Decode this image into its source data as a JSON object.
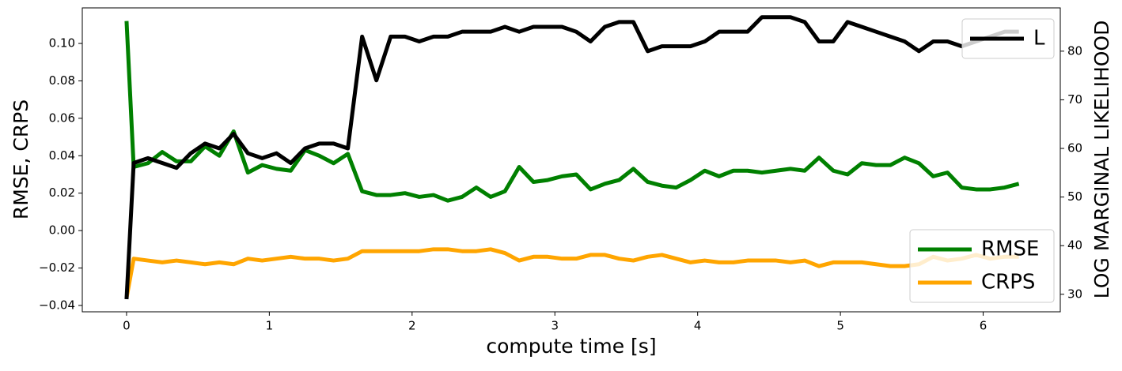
{
  "chart_data": {
    "type": "line",
    "xlabel": "compute time [s]",
    "ylabel": "RMSE, CRPS",
    "y2label": "LOG MARGINAL LIKELIHOOD",
    "x": [
      0,
      0.05,
      0.15,
      0.25,
      0.35,
      0.45,
      0.55,
      0.65,
      0.75,
      0.85,
      0.95,
      1.05,
      1.15,
      1.25,
      1.35,
      1.45,
      1.55,
      1.65,
      1.75,
      1.85,
      1.95,
      2.05,
      2.15,
      2.25,
      2.35,
      2.45,
      2.55,
      2.65,
      2.75,
      2.85,
      2.95,
      3.05,
      3.15,
      3.25,
      3.35,
      3.45,
      3.55,
      3.65,
      3.75,
      3.85,
      3.95,
      4.05,
      4.15,
      4.25,
      4.35,
      4.45,
      4.55,
      4.65,
      4.75,
      4.85,
      4.95,
      5.05,
      5.15,
      5.25,
      5.35,
      5.45,
      5.55,
      5.65,
      5.75,
      5.85,
      5.95,
      6.05,
      6.15,
      6.25
    ],
    "series": [
      {
        "name": "RMSE",
        "color": "#008000",
        "axis": "y",
        "values": [
          0.112,
          0.034,
          0.036,
          0.042,
          0.037,
          0.037,
          0.045,
          0.04,
          0.053,
          0.031,
          0.035,
          0.033,
          0.032,
          0.043,
          0.04,
          0.036,
          0.041,
          0.021,
          0.019,
          0.019,
          0.02,
          0.018,
          0.019,
          0.016,
          0.018,
          0.023,
          0.018,
          0.021,
          0.034,
          0.026,
          0.027,
          0.029,
          0.03,
          0.022,
          0.025,
          0.027,
          0.033,
          0.026,
          0.024,
          0.023,
          0.027,
          0.032,
          0.029,
          0.032,
          0.032,
          0.031,
          0.032,
          0.033,
          0.032,
          0.039,
          0.032,
          0.03,
          0.036,
          0.035,
          0.035,
          0.039,
          0.036,
          0.029,
          0.031,
          0.023,
          0.022,
          0.022,
          0.023,
          0.025
        ]
      },
      {
        "name": "CRPS",
        "color": "#ffa500",
        "axis": "y",
        "values": [
          -0.036,
          -0.015,
          -0.016,
          -0.017,
          -0.016,
          -0.017,
          -0.018,
          -0.017,
          -0.018,
          -0.015,
          -0.016,
          -0.015,
          -0.014,
          -0.015,
          -0.015,
          -0.016,
          -0.015,
          -0.011,
          -0.011,
          -0.011,
          -0.011,
          -0.011,
          -0.01,
          -0.01,
          -0.011,
          -0.011,
          -0.01,
          -0.012,
          -0.016,
          -0.014,
          -0.014,
          -0.015,
          -0.015,
          -0.013,
          -0.013,
          -0.015,
          -0.016,
          -0.014,
          -0.013,
          -0.015,
          -0.017,
          -0.016,
          -0.017,
          -0.017,
          -0.016,
          -0.016,
          -0.016,
          -0.017,
          -0.016,
          -0.019,
          -0.017,
          -0.017,
          -0.017,
          -0.018,
          -0.019,
          -0.019,
          -0.018,
          -0.014,
          -0.016,
          -0.015,
          -0.013,
          -0.015,
          -0.014,
          -0.014
        ]
      },
      {
        "name": "L",
        "color": "#000000",
        "axis": "y2",
        "values": [
          29,
          57,
          58,
          57,
          56,
          59,
          61,
          60,
          63,
          59,
          58,
          59,
          57,
          60,
          61,
          61,
          60,
          83,
          74,
          83,
          83,
          82,
          83,
          83,
          84,
          84,
          84,
          85,
          84,
          85,
          85,
          85,
          84,
          82,
          85,
          86,
          86,
          80,
          81,
          81,
          81,
          82,
          84,
          84,
          84,
          87,
          87,
          87,
          86,
          82,
          82,
          86,
          85,
          84,
          83,
          82,
          80,
          82,
          82,
          81,
          82,
          83,
          84,
          84
        ]
      }
    ],
    "xlim": [
      -0.31,
      6.54
    ],
    "xticks": [
      0,
      1,
      2,
      3,
      4,
      5,
      6
    ],
    "ylim": [
      -0.0434,
      0.119
    ],
    "yticks": [
      {
        "value": -0.04,
        "label": "−0.04"
      },
      {
        "value": -0.02,
        "label": "−0.02"
      },
      {
        "value": 0,
        "label": "0.00"
      },
      {
        "value": 0.02,
        "label": "0.02"
      },
      {
        "value": 0.04,
        "label": "0.04"
      },
      {
        "value": 0.06,
        "label": "0.06"
      },
      {
        "value": 0.08,
        "label": "0.08"
      },
      {
        "value": 0.1,
        "label": "0.10"
      }
    ],
    "y2lim": [
      26.4,
      88.9
    ],
    "y2ticks": [
      30,
      40,
      50,
      60,
      70,
      80
    ],
    "legend_y": "lower right",
    "legend_y2": "upper right"
  }
}
